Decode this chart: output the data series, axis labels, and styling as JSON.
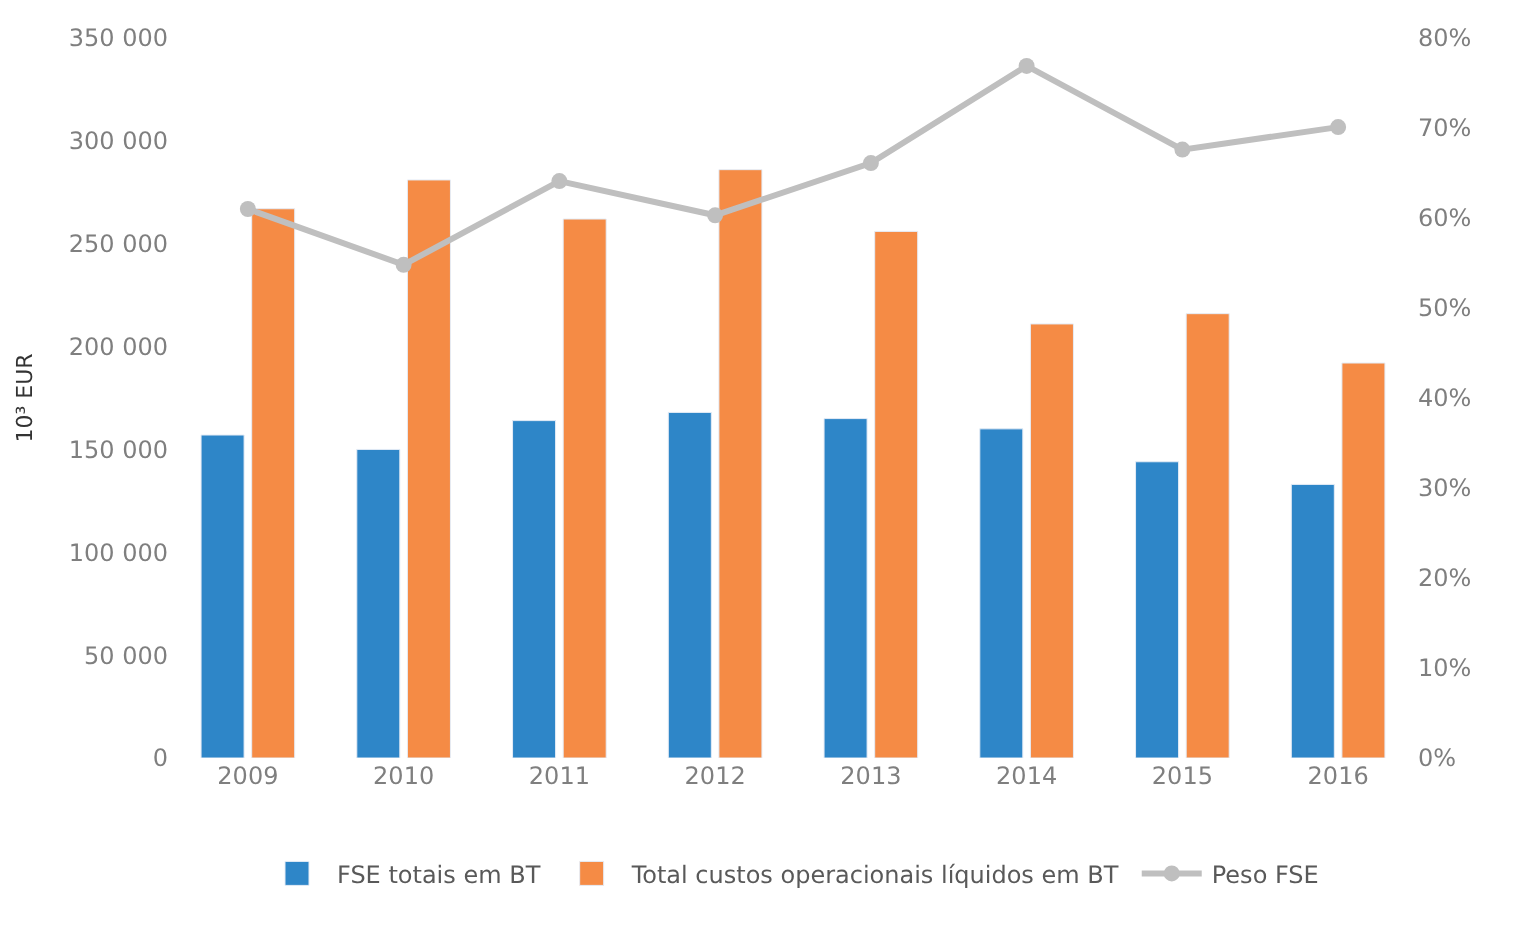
{
  "chart_data": {
    "type": "bar",
    "ylabel": "10³ EUR",
    "categories": [
      "2009",
      "2010",
      "2011",
      "2012",
      "2013",
      "2014",
      "2015",
      "2016"
    ],
    "series": [
      {
        "name": "FSE totais em BT",
        "color": "#2e86c8",
        "values": [
          157000,
          150000,
          164000,
          168000,
          165000,
          160000,
          144000,
          133000
        ]
      },
      {
        "name": "Total custos operacionais líquidos em BT",
        "color": "#f58b45",
        "values": [
          267000,
          281000,
          262000,
          286000,
          256000,
          211000,
          216000,
          192000
        ]
      },
      {
        "name": "Peso FSE",
        "type": "line",
        "axis": "y2",
        "color": "#bfbfbf",
        "marker": "circle",
        "values": [
          61,
          54.8,
          64.1,
          60.3,
          66.1,
          76.9,
          67.6,
          70.1
        ]
      }
    ],
    "ylim": [
      0,
      350000
    ],
    "yticks": [
      {
        "value": 0,
        "label": "0"
      },
      {
        "value": 50000,
        "label": "50 000"
      },
      {
        "value": 100000,
        "label": "100 000"
      },
      {
        "value": 150000,
        "label": "150 000"
      },
      {
        "value": 200000,
        "label": "200 000"
      },
      {
        "value": 250000,
        "label": "250 000"
      },
      {
        "value": 300000,
        "label": "300 000"
      },
      {
        "value": 350000,
        "label": "350 000"
      }
    ],
    "y2lim": [
      0,
      80
    ],
    "y2ticks": [
      {
        "value": 0,
        "label": "0%"
      },
      {
        "value": 10,
        "label": "10%"
      },
      {
        "value": 20,
        "label": "20%"
      },
      {
        "value": 30,
        "label": "30%"
      },
      {
        "value": 40,
        "label": "40%"
      },
      {
        "value": 50,
        "label": "50%"
      },
      {
        "value": 60,
        "label": "60%"
      },
      {
        "value": 70,
        "label": "70%"
      },
      {
        "value": 80,
        "label": "80%"
      }
    ],
    "legend": "bottom"
  }
}
